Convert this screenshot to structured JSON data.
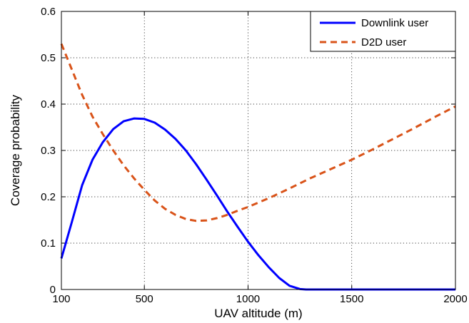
{
  "chart_data": {
    "type": "line",
    "xlabel": "UAV altitude (m)",
    "ylabel": "Coverage probability",
    "xlim": [
      100,
      2000
    ],
    "ylim": [
      0,
      0.6
    ],
    "xticks": [
      100,
      500,
      1000,
      1500,
      2000
    ],
    "yticks": [
      0,
      0.1,
      0.2,
      0.3,
      0.4,
      0.5,
      0.6
    ],
    "xtick_labels": [
      "100",
      "500",
      "1000",
      "1500",
      "2000"
    ],
    "ytick_labels": [
      "0",
      "0.1",
      "0.2",
      "0.3",
      "0.4",
      "0.5",
      "0.6"
    ],
    "grid": true,
    "legend_position": "top-right",
    "series": [
      {
        "name": "Downlink user",
        "color": "#0000ff",
        "style": "solid",
        "x": [
          100,
          150,
          200,
          250,
          300,
          350,
          400,
          450,
          500,
          550,
          600,
          650,
          700,
          750,
          800,
          850,
          900,
          950,
          1000,
          1050,
          1100,
          1150,
          1200,
          1250,
          1280,
          1300,
          1400,
          1500,
          1600,
          1700,
          1800,
          1900,
          2000
        ],
        "y": [
          0.067,
          0.145,
          0.225,
          0.28,
          0.318,
          0.346,
          0.363,
          0.369,
          0.368,
          0.36,
          0.345,
          0.325,
          0.3,
          0.27,
          0.237,
          0.203,
          0.168,
          0.135,
          0.103,
          0.074,
          0.048,
          0.025,
          0.008,
          0.001,
          0.0,
          0.0,
          0.0,
          0.0,
          0.0,
          0.0,
          0.0,
          0.0,
          0.0
        ]
      },
      {
        "name": "D2D user",
        "color": "#d95319",
        "style": "dashed",
        "x": [
          100,
          150,
          200,
          250,
          300,
          350,
          400,
          450,
          500,
          550,
          600,
          650,
          700,
          750,
          800,
          850,
          900,
          950,
          1000,
          1100,
          1200,
          1300,
          1400,
          1500,
          1600,
          1700,
          1800,
          1900,
          2000
        ],
        "y": [
          0.53,
          0.475,
          0.42,
          0.373,
          0.335,
          0.3,
          0.268,
          0.24,
          0.215,
          0.192,
          0.174,
          0.161,
          0.152,
          0.148,
          0.149,
          0.154,
          0.161,
          0.17,
          0.178,
          0.197,
          0.218,
          0.24,
          0.26,
          0.28,
          0.302,
          0.325,
          0.348,
          0.372,
          0.395
        ]
      }
    ]
  }
}
